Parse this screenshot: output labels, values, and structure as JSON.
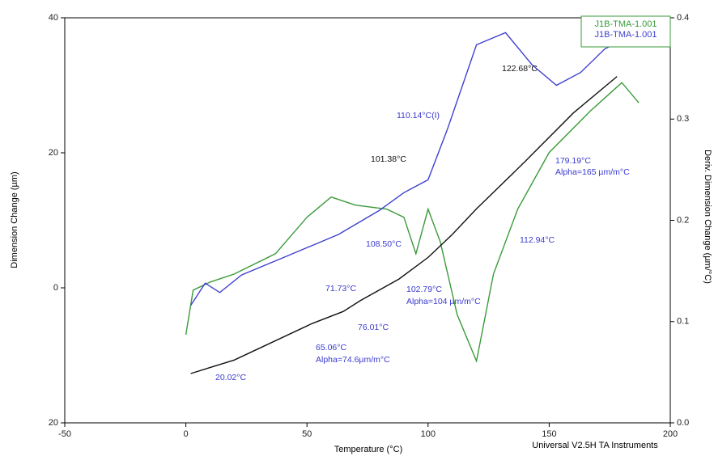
{
  "chart_data": {
    "type": "line",
    "xlabel": "Temperature (°C)",
    "ylabel": "Dimension Change (µm)",
    "y2label": "Deriv. Dimension Change (µm/°C)",
    "footer": "Universal V2.5H TA Instruments",
    "xlim": [
      -50,
      200
    ],
    "xticks": [
      -50,
      0,
      50,
      100,
      150,
      200
    ],
    "ylim": [
      -20,
      40
    ],
    "yticks": [
      {
        "value": -20,
        "label": "20"
      },
      0,
      20,
      40
    ],
    "y2lim": [
      0,
      0.4
    ],
    "y2ticks": [
      {
        "value": 0,
        "label": "0.0"
      },
      0.1,
      0.2,
      0.3,
      0.4
    ],
    "legend": "upper right",
    "series": [
      {
        "name": "J1B-TMA-1.001",
        "color": "#3a9a3a",
        "axis": "y2",
        "x": [
          0,
          3,
          10,
          20,
          37,
          50,
          60,
          70,
          83,
          90,
          95,
          100,
          105,
          112,
          120,
          127,
          137,
          150,
          167,
          180,
          187
        ],
        "values": [
          0.087,
          0.131,
          0.139,
          0.147,
          0.167,
          0.203,
          0.223,
          0.215,
          0.211,
          0.203,
          0.167,
          0.211,
          0.179,
          0.107,
          0.061,
          0.147,
          0.211,
          0.267,
          0.308,
          0.336,
          0.316
        ]
      },
      {
        "name": "J1B-TMA-1.001",
        "color": "#4040d0",
        "x": [
          2,
          8,
          14,
          23,
          43,
          63,
          80,
          90,
          100,
          108,
          120,
          132,
          143,
          153,
          163,
          173,
          180
        ],
        "values": [
          -2.6,
          0.7,
          -0.7,
          1.9,
          4.9,
          7.9,
          11.5,
          14.1,
          16,
          23.5,
          36,
          37.8,
          33,
          30,
          31.9,
          35.4,
          36.6
        ]
      },
      {
        "color": "#111111",
        "x": [
          2,
          20,
          52,
          65,
          72,
          88,
          100,
          110,
          120,
          140,
          160,
          178
        ],
        "values": [
          -12.7,
          -10.7,
          -5.3,
          -3.5,
          -1.9,
          1.3,
          4.5,
          7.9,
          11.7,
          18.7,
          25.9,
          31.3
        ]
      }
    ],
    "annotations": [
      "122.68°C",
      "110.14°C(I)",
      "101.38°C",
      "179.19°C",
      "Alpha=165 µm/m°C",
      "108.50°C",
      "112.94°C",
      "71.73°C",
      "102.79°C",
      "Alpha=104 µm/m°C",
      "76.01°C",
      "65.06°C",
      "Alpha=74.6µm/m°C",
      "20.02°C"
    ]
  }
}
